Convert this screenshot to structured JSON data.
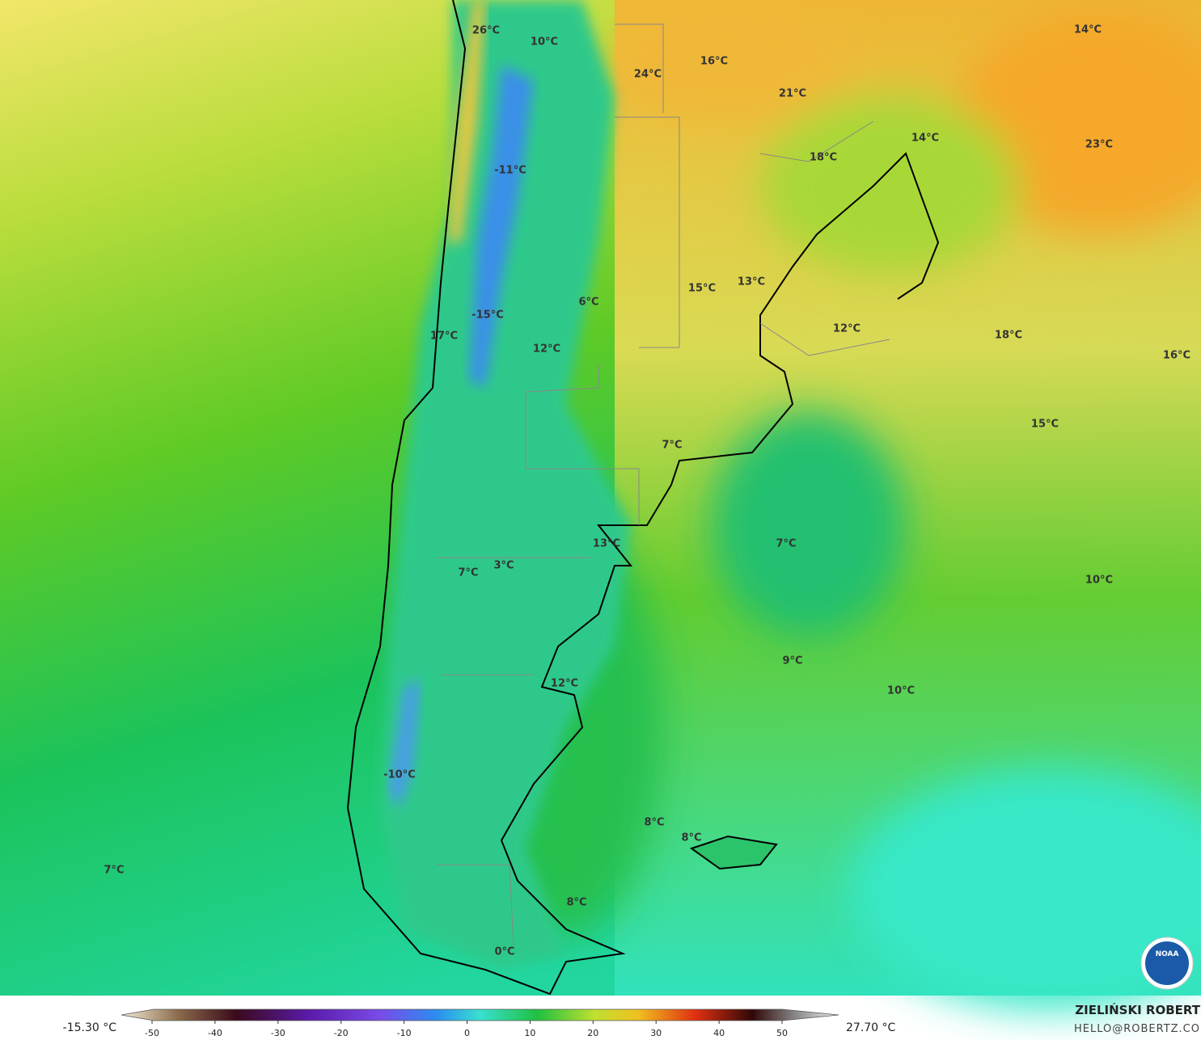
{
  "map": {
    "labels": [
      "26°C",
      "10°C",
      "24°C",
      "16°C",
      "21°C",
      "14°C",
      "14°C",
      "23°C",
      "18°C",
      "-11°C",
      "15°C",
      "13°C",
      "6°C",
      "-15°C",
      "17°C",
      "12°C",
      "18°C",
      "16°C",
      "12°C",
      "15°C",
      "7°C",
      "7°C",
      "13°C",
      "3°C",
      "7°C",
      "10°C",
      "9°C",
      "12°C",
      "10°C",
      "-10°C",
      "8°C",
      "8°C",
      "7°C",
      "8°C",
      "0°C"
    ]
  },
  "colorbar": {
    "min_label": "-15.30 °C",
    "max_label": "27.70 °C",
    "ticks": [
      -50,
      -40,
      -30,
      -20,
      -10,
      0,
      10,
      20,
      30,
      40,
      50
    ]
  },
  "credit": {
    "name": "ZIELIŃSKI ROBERT",
    "email": "HELLO@ROBERTZ.CO"
  },
  "logo": "NOAA"
}
